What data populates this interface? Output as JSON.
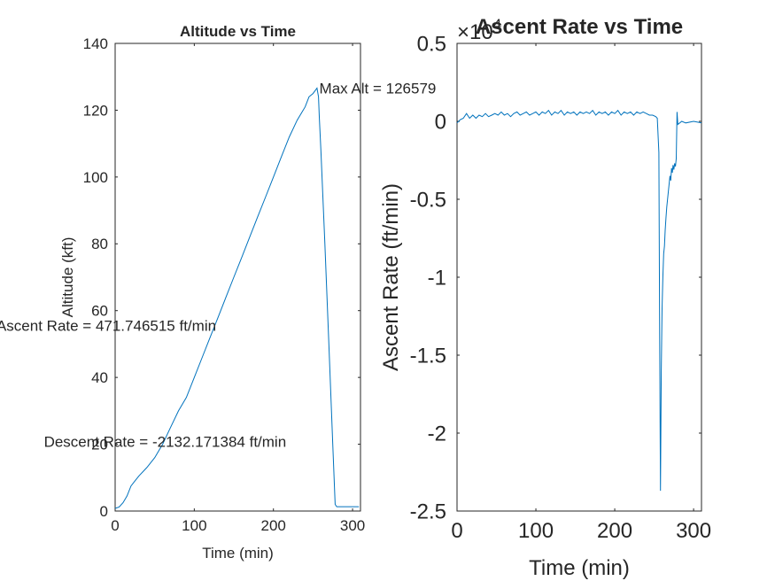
{
  "chart_data": [
    {
      "type": "line",
      "title": "Altitude vs Time",
      "xlabel": "Time (min)",
      "ylabel": "Altitude (kft)",
      "xlim": [
        0,
        310
      ],
      "ylim": [
        0,
        140
      ],
      "xticks": [
        0,
        100,
        200,
        300
      ],
      "yticks": [
        0,
        20,
        40,
        60,
        80,
        100,
        120,
        140
      ],
      "grid": false,
      "color": "#0072BD",
      "series": [
        {
          "x": [
            0,
            5,
            10,
            15,
            20,
            25,
            30,
            40,
            50,
            60,
            70,
            80,
            90,
            100,
            110,
            120,
            130,
            140,
            150,
            160,
            170,
            180,
            190,
            200,
            210,
            220,
            230,
            240,
            245,
            250,
            255,
            257,
            258,
            260,
            265,
            270,
            275,
            278,
            280,
            290,
            300,
            308
          ],
          "y": [
            0.8,
            1.2,
            2.5,
            4.5,
            7.5,
            9,
            10.5,
            13,
            16,
            20,
            25,
            30,
            34,
            40,
            46,
            52,
            58,
            64,
            70,
            76,
            82,
            88,
            94,
            100,
            106,
            112,
            117,
            121,
            124,
            125,
            126.6,
            124,
            118,
            108,
            80,
            50,
            20,
            2,
            1.3,
            1.3,
            1.3,
            1.3
          ]
        }
      ],
      "annotations": [
        {
          "text": "Max Alt = 126579",
          "x": 258,
          "y": 126.6
        },
        {
          "text": "Ascent Rate = 471.746515 ft/min",
          "x": -150,
          "y": 55.5
        },
        {
          "text": "Descent Rate = -2132.171384 ft/min",
          "x": -90,
          "y": 20.8
        }
      ]
    },
    {
      "type": "line",
      "title": "Ascent Rate vs Time",
      "xlabel": "Time (min)",
      "ylabel": "Ascent Rate (ft/min)",
      "xlim": [
        0,
        310
      ],
      "ylim": [
        -2.5,
        0.5
      ],
      "xticks": [
        0,
        100,
        200,
        300
      ],
      "yticks": [
        0.5,
        0,
        -0.5,
        -1,
        -1.5,
        -2,
        -2.5
      ],
      "y_multiplier": "×10",
      "y_multiplier_exponent": "4",
      "grid": false,
      "color": "#0072BD",
      "series": [
        {
          "x": [
            0,
            4,
            8,
            12,
            16,
            20,
            24,
            28,
            32,
            36,
            40,
            44,
            48,
            52,
            56,
            60,
            64,
            68,
            72,
            76,
            80,
            84,
            88,
            92,
            96,
            100,
            104,
            108,
            112,
            116,
            120,
            124,
            128,
            132,
            136,
            140,
            144,
            148,
            152,
            156,
            160,
            164,
            168,
            172,
            176,
            180,
            184,
            188,
            192,
            196,
            200,
            204,
            208,
            212,
            216,
            220,
            224,
            228,
            232,
            236,
            240,
            244,
            248,
            252,
            254,
            256,
            257,
            258,
            259,
            260,
            261,
            262,
            263,
            264,
            265,
            266,
            267,
            268,
            269,
            270,
            271,
            272,
            273,
            274,
            275,
            276,
            277,
            278,
            279,
            280,
            285,
            290,
            300,
            310
          ],
          "y": [
            -0.01,
            0.01,
            0.02,
            0.05,
            0.02,
            0.04,
            0.02,
            0.04,
            0.03,
            0.05,
            0.03,
            0.04,
            0.05,
            0.04,
            0.06,
            0.04,
            0.05,
            0.03,
            0.05,
            0.06,
            0.04,
            0.05,
            0.06,
            0.04,
            0.05,
            0.06,
            0.04,
            0.06,
            0.05,
            0.07,
            0.04,
            0.06,
            0.05,
            0.07,
            0.04,
            0.06,
            0.05,
            0.06,
            0.04,
            0.06,
            0.05,
            0.06,
            0.05,
            0.07,
            0.04,
            0.06,
            0.05,
            0.06,
            0.04,
            0.06,
            0.05,
            0.07,
            0.04,
            0.06,
            0.05,
            0.06,
            0.04,
            0.06,
            0.05,
            0.06,
            0.05,
            0.04,
            0.04,
            0.03,
            0.02,
            -0.2,
            -1.4,
            -2.37,
            -1.6,
            -1.2,
            -1.0,
            -0.85,
            -0.8,
            -0.7,
            -0.62,
            -0.55,
            -0.5,
            -0.45,
            -0.4,
            -0.35,
            -0.38,
            -0.3,
            -0.33,
            -0.28,
            -0.31,
            -0.27,
            -0.29,
            -0.24,
            0.06,
            -0.02,
            0.0,
            -0.01,
            0.0,
            -0.01
          ]
        }
      ]
    }
  ]
}
